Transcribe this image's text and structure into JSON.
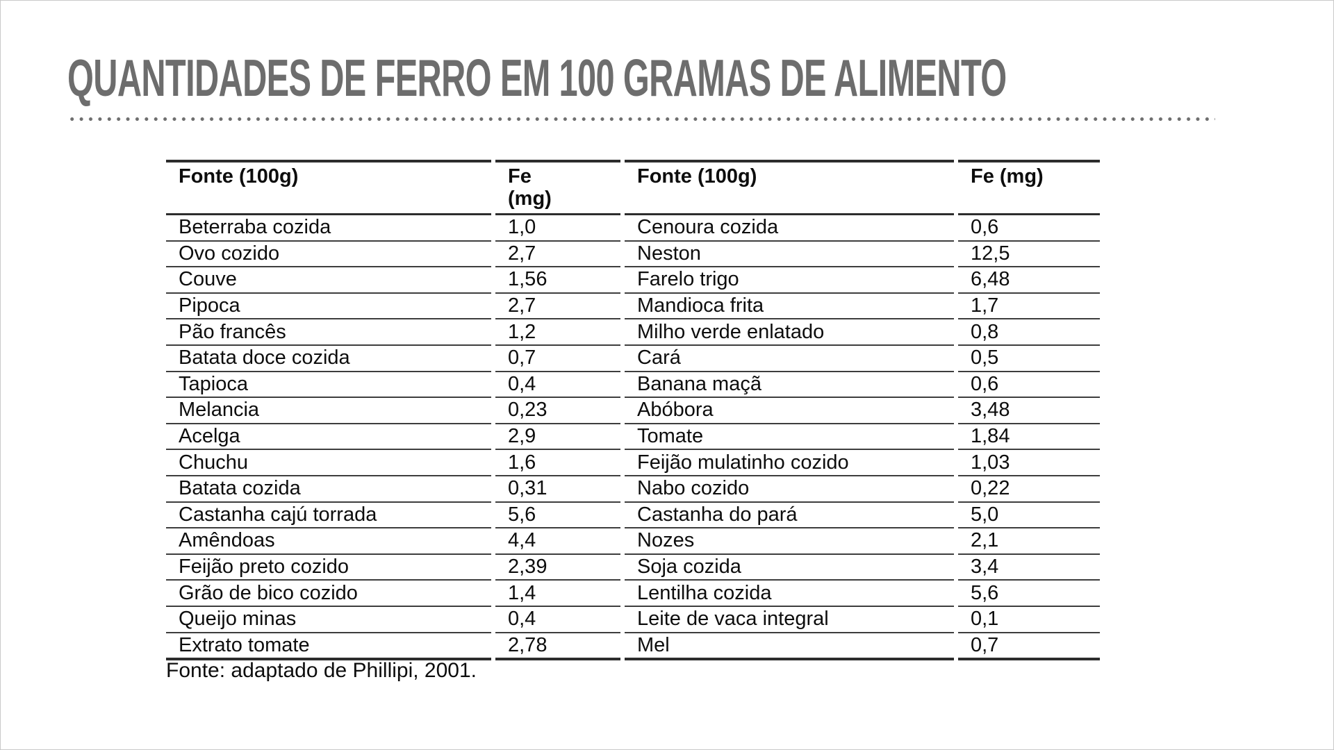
{
  "page": {
    "title": "QUANTIDADES DE FERRO EM 100 GRAMAS DE ALIMENTO",
    "footer": "Fonte: adaptado de Phillipi, 2001."
  },
  "colors": {
    "title_gray": "#6d6d6d",
    "text_black": "#0d0d0d",
    "thick_border": "#2d2d2d",
    "row_line": "#3d3d3d",
    "dot_gray": "#6f6f6f"
  },
  "table": {
    "headers": [
      "Fonte (100g)",
      "Fe\n(mg)",
      "Fonte (100g)",
      "Fe (mg)"
    ],
    "rows": [
      {
        "f1": "Beterraba cozida",
        "v1": "1,0",
        "f2": "Cenoura cozida",
        "v2": "0,6"
      },
      {
        "f1": "Ovo cozido",
        "v1": "2,7",
        "f2": "Neston",
        "v2": "12,5"
      },
      {
        "f1": "Couve",
        "v1": "1,56",
        "f2": "Farelo trigo",
        "v2": "6,48"
      },
      {
        "f1": "Pipoca",
        "v1": "2,7",
        "f2": "Mandioca frita",
        "v2": "1,7"
      },
      {
        "f1": "Pão francês",
        "v1": "1,2",
        "f2": "Milho verde enlatado",
        "v2": "0,8"
      },
      {
        "f1": "Batata doce cozida",
        "v1": "0,7",
        "f2": "Cará",
        "v2": "0,5"
      },
      {
        "f1": "Tapioca",
        "v1": "0,4",
        "f2": "Banana maçã",
        "v2": "0,6"
      },
      {
        "f1": "Melancia",
        "v1": "0,23",
        "f2": "Abóbora",
        "v2": "3,48"
      },
      {
        "f1": "Acelga",
        "v1": "2,9",
        "f2": "Tomate",
        "v2": "1,84"
      },
      {
        "f1": "Chuchu",
        "v1": "1,6",
        "f2": "Feijão mulatinho cozido",
        "v2": "1,03"
      },
      {
        "f1": "Batata cozida",
        "v1": "0,31",
        "f2": "Nabo cozido",
        "v2": "0,22"
      },
      {
        "f1": "Castanha cajú torrada",
        "v1": "5,6",
        "f2": "Castanha do pará",
        "v2": "5,0"
      },
      {
        "f1": "Amêndoas",
        "v1": "4,4",
        "f2": "Nozes",
        "v2": "2,1"
      },
      {
        "f1": "Feijão preto cozido",
        "v1": "2,39",
        "f2": "Soja cozida",
        "v2": "3,4"
      },
      {
        "f1": "Grão de bico cozido",
        "v1": "1,4",
        "f2": "Lentilha cozida",
        "v2": "5,6"
      },
      {
        "f1": "Queijo minas",
        "v1": "0,4",
        "f2": "Leite de vaca integral",
        "v2": "0,1"
      },
      {
        "f1": "Extrato tomate",
        "v1": "2,78",
        "f2": "Mel",
        "v2": "0,7"
      }
    ]
  }
}
